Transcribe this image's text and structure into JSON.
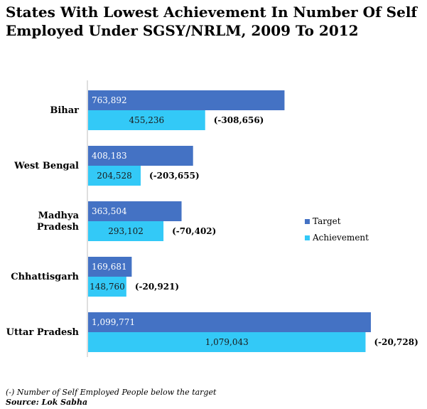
{
  "chart_data": {
    "type": "bar",
    "orientation": "horizontal",
    "title": "States With Lowest Achievement In Number Of Self Employed Under SGSY/NRLM, 2009 To 2012",
    "categories": [
      "Bihar",
      "West Bengal",
      "Madhya Pradesh",
      "Chhattisgarh",
      "Uttar Pradesh"
    ],
    "category_lines": [
      [
        "Bihar"
      ],
      [
        "West Bengal"
      ],
      [
        "Madhya",
        "Pradesh"
      ],
      [
        "Chhattisgarh"
      ],
      [
        "Uttar Pradesh"
      ]
    ],
    "series": [
      {
        "name": "Target",
        "color": "#4472c4",
        "values": [
          763892,
          408183,
          363504,
          169681,
          1099771
        ],
        "labels": [
          "763,892",
          "408,183",
          "363,504",
          "169,681",
          "1,099,771"
        ]
      },
      {
        "name": "Achievement",
        "color": "#33c9f7",
        "values": [
          455236,
          204528,
          293102,
          148760,
          1079043
        ],
        "labels": [
          "455,236",
          "204,528",
          "293,102",
          "148,760",
          "1,079,043"
        ]
      }
    ],
    "differences": [
      "(-308,656)",
      "(-203,655)",
      "(-70,402)",
      "(-20,921)",
      "(-20,728)"
    ],
    "legend_position": "right",
    "grid": false
  },
  "footer": {
    "note": "(-) Number of Self Employed People below the target",
    "source": "Source: Lok Sabha"
  }
}
